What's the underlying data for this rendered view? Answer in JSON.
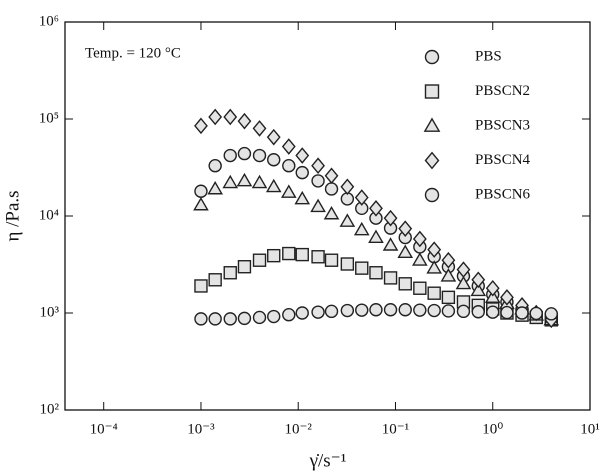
{
  "chart_data": {
    "type": "scatter",
    "annotation": "Temp. = 120 °C",
    "x_label": "γ̇/s⁻¹",
    "y_label": "η /Pa.s",
    "log_x": true,
    "log_y": true,
    "xlim": [
      4e-05,
      10
    ],
    "ylim": [
      100,
      1000000
    ],
    "xticks": [
      {
        "value": 0.0001,
        "label": "10⁻⁴"
      },
      {
        "value": 0.001,
        "label": "10⁻³"
      },
      {
        "value": 0.01,
        "label": "10⁻²"
      },
      {
        "value": 0.1,
        "label": "10⁻¹"
      },
      {
        "value": 1,
        "label": "10⁰"
      },
      {
        "value": 10,
        "label": "10¹"
      }
    ],
    "yticks": [
      {
        "value": 100,
        "label": "10²"
      },
      {
        "value": 1000,
        "label": "10³"
      },
      {
        "value": 10000,
        "label": "10⁴"
      },
      {
        "value": 100000,
        "label": "10⁵"
      },
      {
        "value": 1000000,
        "label": "10⁶"
      }
    ],
    "x": [
      0.001,
      0.0014,
      0.002,
      0.0028,
      0.004,
      0.0056,
      0.008,
      0.011,
      0.016,
      0.022,
      0.032,
      0.045,
      0.063,
      0.089,
      0.126,
      0.178,
      0.25,
      0.35,
      0.5,
      0.71,
      1.0,
      1.4,
      2.0,
      2.8,
      4.0
    ],
    "series": [
      {
        "name": "PBS",
        "marker": "circle",
        "color": "#222222",
        "values": [
          18000,
          33000,
          42000,
          44000,
          42000,
          38000,
          33000,
          28000,
          23000,
          19000,
          15000,
          12000,
          9500,
          7500,
          6000,
          4800,
          3800,
          3000,
          2400,
          1900,
          1550,
          1300,
          1100,
          950,
          850
        ]
      },
      {
        "name": "PBSCN2",
        "marker": "square",
        "color": "#222222",
        "values": [
          1900,
          2200,
          2600,
          3000,
          3500,
          3900,
          4100,
          4000,
          3800,
          3500,
          3200,
          2900,
          2600,
          2300,
          2000,
          1800,
          1600,
          1450,
          1300,
          1200,
          1100,
          1000,
          950,
          900,
          850
        ]
      },
      {
        "name": "PBSCN3",
        "marker": "triangle",
        "color": "#222222",
        "values": [
          13000,
          19000,
          22000,
          23000,
          22000,
          20000,
          17500,
          15000,
          12500,
          10500,
          8800,
          7200,
          6000,
          5000,
          4200,
          3500,
          2900,
          2400,
          2000,
          1700,
          1450,
          1250,
          1100,
          950,
          850
        ]
      },
      {
        "name": "PBSCN4",
        "marker": "diamond",
        "color": "#222222",
        "values": [
          85000,
          105000,
          105000,
          95000,
          80000,
          65000,
          52000,
          42000,
          33000,
          26000,
          20000,
          15500,
          12000,
          9500,
          7400,
          5800,
          4500,
          3500,
          2800,
          2200,
          1800,
          1450,
          1200,
          1000,
          850
        ]
      },
      {
        "name": "PBSCN6",
        "marker": "circle",
        "color": "#222222",
        "values": [
          870,
          870,
          870,
          880,
          900,
          920,
          960,
          1000,
          1020,
          1040,
          1060,
          1070,
          1080,
          1080,
          1080,
          1070,
          1060,
          1050,
          1040,
          1030,
          1020,
          1010,
          1000,
          990,
          980
        ]
      }
    ]
  }
}
